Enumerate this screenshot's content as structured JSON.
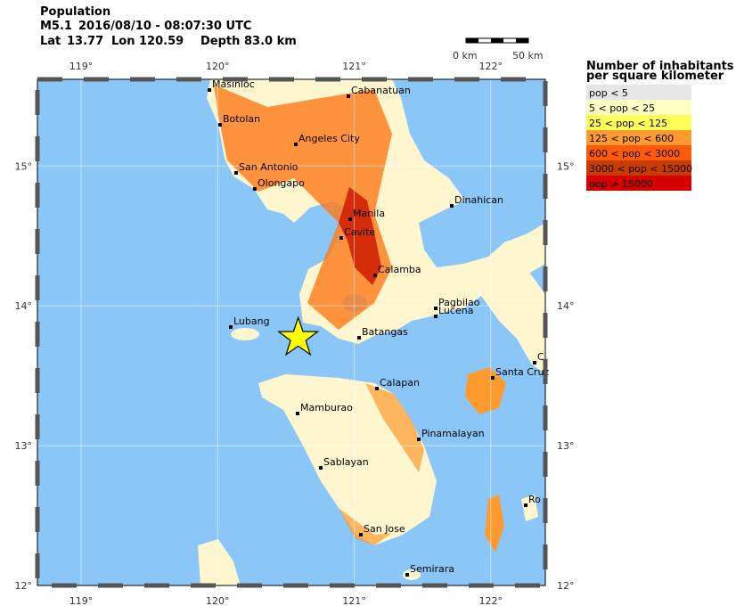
{
  "header": {
    "title": "Population",
    "magnitude": "M5.1",
    "time": "2016/08/10 - 08:07:30 UTC",
    "lat_label": "Lat",
    "lat": 13.77,
    "lon_label": "Lon",
    "lon": 120.59,
    "depth_label": "Depth",
    "depth": "83.0 km"
  },
  "scale_bar": {
    "start_label": "0 km",
    "end_label": "50 km"
  },
  "map": {
    "xlim": [
      118.68,
      122.4
    ],
    "ylim": [
      12,
      15.62
    ],
    "xticks": [
      {
        "value": 119,
        "label": "119°"
      },
      {
        "value": 120,
        "label": "120°"
      },
      {
        "value": 121,
        "label": "121°"
      },
      {
        "value": 122,
        "label": "122°"
      }
    ],
    "yticks": [
      {
        "value": 12,
        "label": "12°"
      },
      {
        "value": 13,
        "label": "13°"
      },
      {
        "value": 14,
        "label": "14°"
      },
      {
        "value": 15,
        "label": "15°"
      }
    ],
    "cities": [
      "Masinloc",
      "Cabanatuan",
      "Botolan",
      "Angeles City",
      "San Antonio",
      "Olongapo",
      "Dinahican",
      "Manila",
      "Cavite",
      "Calamba",
      "Pagbilao",
      "Lucena",
      "Lubang",
      "Batangas",
      "Santa Cruz",
      "C",
      "Calapan",
      "Mamburao",
      "Pinamalayan",
      "Sablayan",
      "Ro",
      "San Jose",
      "Semirara"
    ]
  },
  "legend": {
    "title_line1": "Number of inhabitants",
    "title_line2": "per square kilometer",
    "items": [
      {
        "label": "pop < 5",
        "color": "#e6e6e6"
      },
      {
        "label": "5 < pop < 25",
        "color": "#ffffc4"
      },
      {
        "label": "25 < pop < 125",
        "color": "#ffff5a"
      },
      {
        "label": "125 < pop < 600",
        "color": "#ff9a2e"
      },
      {
        "label": "600 < pop < 3000",
        "color": "#ff5a0a"
      },
      {
        "label": "3000 < pop < 15000",
        "color": "#c83c00"
      },
      {
        "label": "pop > 15000",
        "color": "#d60000"
      }
    ]
  }
}
